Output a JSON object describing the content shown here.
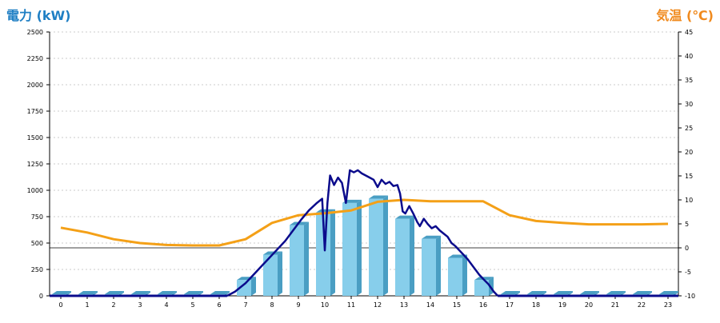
{
  "axis_titles": {
    "left": "電力 (kW)",
    "right": "気温 (℃)"
  },
  "colors": {
    "bar_face": "#87ceeb",
    "bar_side": "#4a9ec3",
    "bar_top": "#b5e2f5",
    "power_line": "#0b0b8c",
    "temp_line": "#f4a017",
    "grid": "#bbbbbb",
    "axis_text": "#000000"
  },
  "chart_data": {
    "type": "bar",
    "categories": [
      "0",
      "1",
      "2",
      "3",
      "4",
      "5",
      "6",
      "7",
      "8",
      "9",
      "10",
      "11",
      "12",
      "13",
      "14",
      "15",
      "16",
      "17",
      "18",
      "19",
      "20",
      "21",
      "22",
      "23"
    ],
    "bar_values": [
      0,
      0,
      0,
      0,
      0,
      0,
      0,
      150,
      390,
      670,
      790,
      880,
      920,
      730,
      540,
      360,
      150,
      0,
      0,
      0,
      0,
      0,
      0,
      0
    ],
    "power_line": [
      [
        6.3,
        0
      ],
      [
        6.6,
        40
      ],
      [
        7.0,
        120
      ],
      [
        7.3,
        200
      ],
      [
        7.6,
        280
      ],
      [
        7.9,
        360
      ],
      [
        8.2,
        440
      ],
      [
        8.5,
        520
      ],
      [
        8.8,
        620
      ],
      [
        9.1,
        720
      ],
      [
        9.4,
        810
      ],
      [
        9.7,
        880
      ],
      [
        9.9,
        920
      ],
      [
        10.0,
        430
      ],
      [
        10.1,
        880
      ],
      [
        10.2,
        1140
      ],
      [
        10.35,
        1050
      ],
      [
        10.5,
        1120
      ],
      [
        10.65,
        1070
      ],
      [
        10.8,
        880
      ],
      [
        10.95,
        1190
      ],
      [
        11.1,
        1170
      ],
      [
        11.25,
        1190
      ],
      [
        11.4,
        1160
      ],
      [
        11.55,
        1140
      ],
      [
        11.7,
        1120
      ],
      [
        11.85,
        1100
      ],
      [
        12.0,
        1030
      ],
      [
        12.15,
        1100
      ],
      [
        12.3,
        1060
      ],
      [
        12.45,
        1080
      ],
      [
        12.6,
        1040
      ],
      [
        12.75,
        1050
      ],
      [
        12.85,
        970
      ],
      [
        12.95,
        800
      ],
      [
        13.05,
        780
      ],
      [
        13.2,
        850
      ],
      [
        13.35,
        780
      ],
      [
        13.5,
        700
      ],
      [
        13.6,
        660
      ],
      [
        13.75,
        730
      ],
      [
        13.9,
        680
      ],
      [
        14.05,
        640
      ],
      [
        14.2,
        660
      ],
      [
        14.35,
        620
      ],
      [
        14.5,
        590
      ],
      [
        14.65,
        560
      ],
      [
        14.8,
        500
      ],
      [
        14.95,
        470
      ],
      [
        15.1,
        430
      ],
      [
        15.25,
        390
      ],
      [
        15.4,
        350
      ],
      [
        15.55,
        300
      ],
      [
        15.7,
        250
      ],
      [
        15.85,
        200
      ],
      [
        16.0,
        160
      ],
      [
        16.2,
        110
      ],
      [
        16.4,
        40
      ],
      [
        16.55,
        0
      ]
    ],
    "temperature": [
      [
        0,
        4.2
      ],
      [
        1,
        3.2
      ],
      [
        2,
        1.8
      ],
      [
        3,
        1.0
      ],
      [
        4,
        0.6
      ],
      [
        5,
        0.5
      ],
      [
        6,
        0.5
      ],
      [
        7,
        1.8
      ],
      [
        8,
        5.2
      ],
      [
        9,
        6.8
      ],
      [
        10,
        7.2
      ],
      [
        11,
        7.8
      ],
      [
        12,
        9.6
      ],
      [
        13,
        10.0
      ],
      [
        14,
        9.7
      ],
      [
        15,
        9.7
      ],
      [
        16,
        9.7
      ],
      [
        17,
        6.8
      ],
      [
        18,
        5.6
      ],
      [
        19,
        5.2
      ],
      [
        20,
        4.9
      ],
      [
        21,
        4.9
      ],
      [
        22,
        4.9
      ],
      [
        23,
        5.0
      ]
    ],
    "ylim_left": [
      0,
      2500
    ],
    "ylim_right": [
      -10,
      45
    ],
    "left_ticks": [
      0,
      250,
      500,
      750,
      1000,
      1250,
      1500,
      1750,
      2000,
      2250,
      2500
    ],
    "right_ticks": [
      -10,
      -5,
      0,
      5,
      10,
      15,
      20,
      25,
      30,
      35,
      40,
      45
    ],
    "grid": true
  }
}
